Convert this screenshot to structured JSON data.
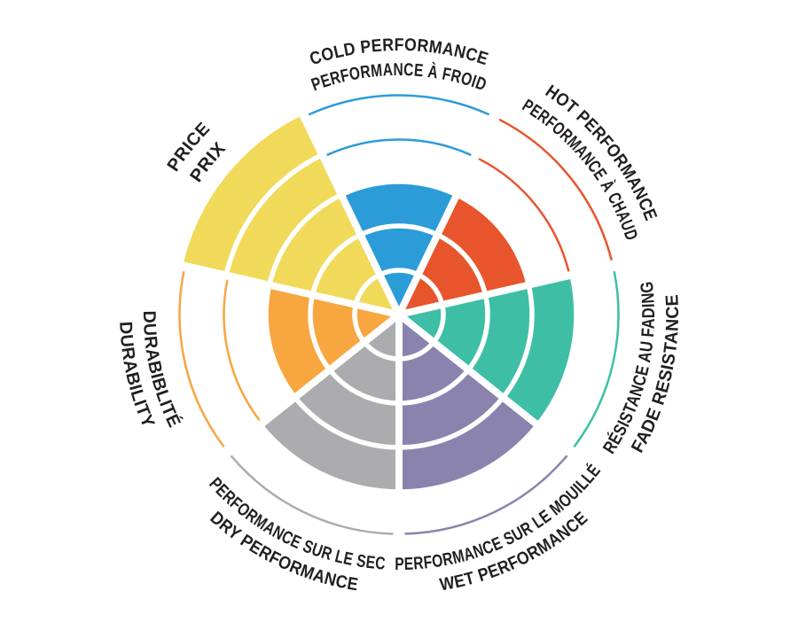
{
  "page": {
    "background": "#ffffff"
  },
  "chart_data": {
    "type": "bar",
    "subtype": "polar-sector-wheel",
    "title": "",
    "categories": [
      "COLD PERFORMANCE",
      "HOT PERFORMANCE",
      "FADE RESISTANCE",
      "WET PERFORMANCE",
      "DRY PERFORMANCE",
      "DURABILITY",
      "PRICE"
    ],
    "values": [
      3,
      3,
      4,
      4,
      4,
      3,
      5
    ],
    "max_level": 5,
    "ring_levels": [
      1,
      2,
      3,
      4,
      5
    ],
    "ylim": [
      0,
      5
    ],
    "grid": "concentric-rings-and-spokes",
    "legend_position": "none",
    "text_color": "#231F20",
    "background_color": "#ffffff",
    "sectors": [
      {
        "id": "cold-performance",
        "value": 3,
        "color": "#2B9CD8",
        "lines": [
          "COLD PERFORMANCE",
          "PERFORMANCE À FROID"
        ],
        "label_flip": false
      },
      {
        "id": "hot-performance",
        "value": 3,
        "color": "#E8552C",
        "lines": [
          "HOT PERFORMANCE",
          "PERFORMANCE À CHAUD"
        ],
        "label_flip": false
      },
      {
        "id": "fade-resistance",
        "value": 4,
        "color": "#3EBFA5",
        "lines": [
          "RÉSISTANCE AU FADING",
          "FADE RESISTANCE"
        ],
        "label_flip": true
      },
      {
        "id": "wet-performance",
        "value": 4,
        "color": "#8983AE",
        "lines": [
          "PERFORMANCE SUR LE MOUILLÉ",
          "WET PERFORMANCE"
        ],
        "label_flip": true
      },
      {
        "id": "dry-performance",
        "value": 4,
        "color": "#ACACAE",
        "lines": [
          "PERFORMANCE SUR LE SEC",
          "DRY PERFORMANCE"
        ],
        "label_flip": true
      },
      {
        "id": "durability",
        "value": 3,
        "color": "#F8A640",
        "lines": [
          "DURABIBLITÉ",
          "DURABILITY"
        ],
        "label_flip": true
      },
      {
        "id": "price",
        "value": 5,
        "color": "#F1DA5A",
        "lines": [
          "PRICE",
          "PRIX"
        ],
        "label_flip": false
      }
    ]
  }
}
